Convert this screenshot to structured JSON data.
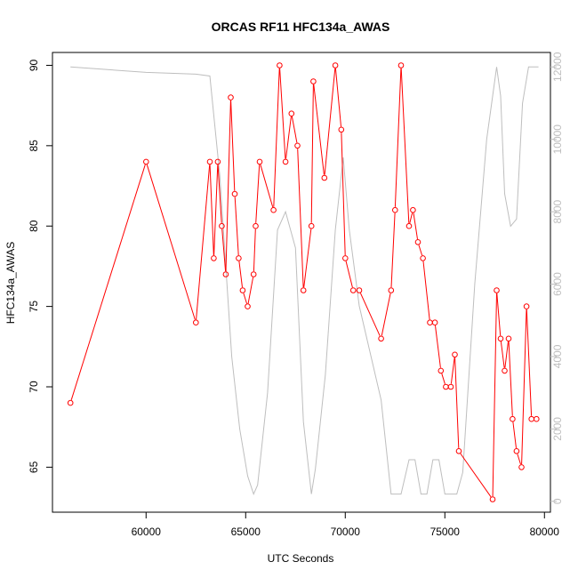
{
  "chart_data": {
    "type": "line",
    "title": "ORCAS RF11 HFC134a_AWAS",
    "xlabel": "UTC Seconds",
    "ylabel": "HFC134a_AWAS",
    "xlim": [
      55300,
      80300
    ],
    "ylim": [
      62.2,
      90.8
    ],
    "y2lim": [
      -300,
      12400
    ],
    "x_ticks": [
      60000,
      65000,
      70000,
      75000,
      80000
    ],
    "y_ticks": [
      65,
      70,
      75,
      80,
      85,
      90
    ],
    "y2_ticks": [
      0,
      2000,
      4000,
      6000,
      8000,
      10000,
      12000
    ],
    "colors": {
      "primary": "#ff0000",
      "secondary": "#bebebe",
      "axis": "#000000"
    },
    "series": [
      {
        "role": "primary",
        "marker": "open-circle",
        "x": [
          56200,
          60000,
          62500,
          63200,
          63400,
          63600,
          63800,
          64000,
          64250,
          64450,
          64650,
          64850,
          65100,
          65400,
          65500,
          65700,
          66400,
          66700,
          67000,
          67300,
          67600,
          67900,
          68300,
          68400,
          68950,
          69500,
          69800,
          70000,
          70400,
          70700,
          71800,
          72300,
          72500,
          72800,
          73200,
          73400,
          73650,
          73900,
          74250,
          74500,
          74800,
          75050,
          75300,
          75500,
          75700,
          77400,
          77600,
          77800,
          78000,
          78200,
          78400,
          78600,
          78850,
          79100,
          79350,
          79600
        ],
        "values": [
          69,
          84,
          74,
          84,
          78,
          84,
          80,
          77,
          88,
          82,
          78,
          76,
          75,
          77,
          80,
          84,
          81,
          90,
          84,
          87,
          85,
          76,
          80,
          89,
          83,
          90,
          86,
          78,
          76,
          76,
          73,
          76,
          81,
          90,
          80,
          81,
          79,
          78,
          74,
          74,
          71,
          70,
          70,
          72,
          66,
          63,
          76,
          73,
          71,
          73,
          68,
          66,
          65,
          75,
          68,
          68
        ]
      },
      {
        "role": "secondary",
        "axis": "right",
        "x": [
          56200,
          60000,
          62500,
          63200,
          63700,
          64300,
          64700,
          65100,
          65400,
          65600,
          66100,
          66600,
          67000,
          67500,
          67900,
          68300,
          68500,
          69000,
          69500,
          69900,
          70200,
          70700,
          71800,
          72300,
          72800,
          73200,
          73500,
          73800,
          74100,
          74400,
          74700,
          75000,
          75600,
          75900,
          76500,
          77100,
          77600,
          77800,
          78000,
          78300,
          78600,
          78900,
          79200,
          79700
        ],
        "values": [
          12000,
          11850,
          11800,
          11750,
          9000,
          4000,
          2000,
          700,
          200,
          450,
          3000,
          7500,
          8000,
          7000,
          2200,
          200,
          900,
          3500,
          7500,
          9500,
          7500,
          5400,
          2800,
          200,
          200,
          1150,
          1150,
          200,
          200,
          1150,
          1150,
          200,
          200,
          800,
          6000,
          10000,
          12000,
          11200,
          8500,
          7600,
          7800,
          11000,
          12000,
          12000
        ]
      }
    ]
  }
}
